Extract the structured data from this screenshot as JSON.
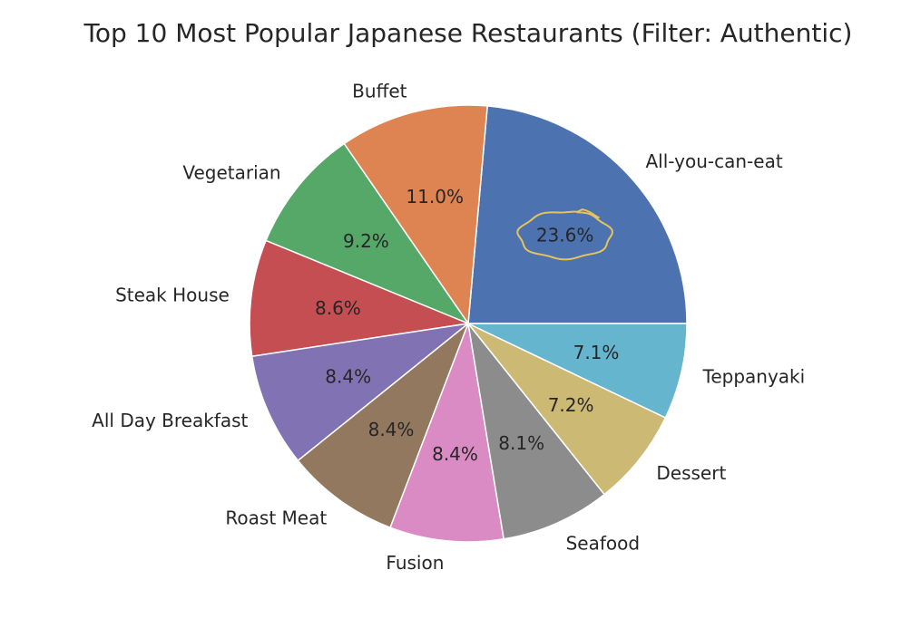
{
  "chart_data": {
    "type": "pie",
    "title": "Top 10 Most Popular Japanese Restaurants (Filter: Authentic)",
    "slices": [
      {
        "label": "All-you-can-eat",
        "value": 23.6,
        "pct_text": "23.6%",
        "color": "#4c72b0"
      },
      {
        "label": "Buffet",
        "value": 11.0,
        "pct_text": "11.0%",
        "color": "#dd8452"
      },
      {
        "label": "Vegetarian",
        "value": 9.2,
        "pct_text": "9.2%",
        "color": "#55a868"
      },
      {
        "label": "Steak House",
        "value": 8.6,
        "pct_text": "8.6%",
        "color": "#c44e52"
      },
      {
        "label": "All Day Breakfast",
        "value": 8.4,
        "pct_text": "8.4%",
        "color": "#8172b3"
      },
      {
        "label": "Roast Meat",
        "value": 8.4,
        "pct_text": "8.4%",
        "color": "#937860"
      },
      {
        "label": "Fusion",
        "value": 8.4,
        "pct_text": "8.4%",
        "color": "#da8bc3"
      },
      {
        "label": "Seafood",
        "value": 8.1,
        "pct_text": "8.1%",
        "color": "#8c8c8c"
      },
      {
        "label": "Dessert",
        "value": 7.2,
        "pct_text": "7.2%",
        "color": "#ccb974"
      },
      {
        "label": "Teppanyaki",
        "value": 7.1,
        "pct_text": "7.1%",
        "color": "#64b5cd"
      }
    ],
    "start_angle_deg": 0,
    "direction": "counterclockwise",
    "highlight": {
      "slice": "All-you-can-eat",
      "shape": "hand-drawn ellipse",
      "color": "#e6c35c"
    }
  }
}
